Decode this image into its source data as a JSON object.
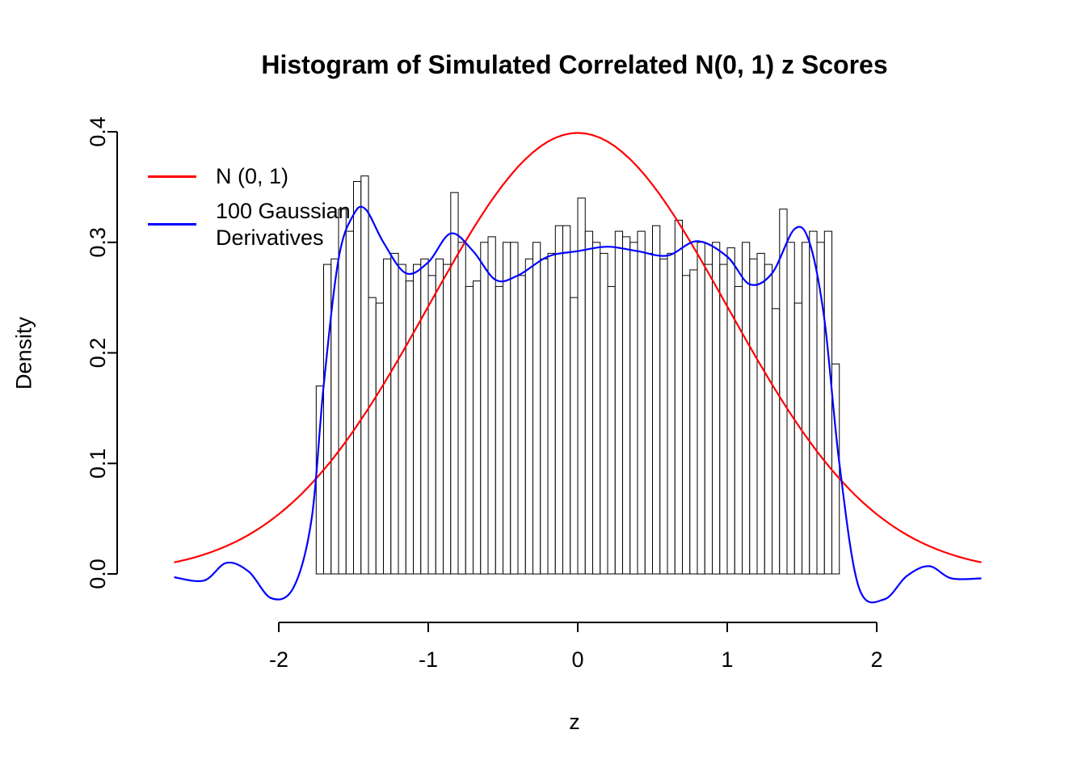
{
  "chart_data": {
    "type": "bar",
    "subtype": "histogram-with-density-overlays",
    "title": "Histogram of Simulated Correlated N(0, 1) z Scores",
    "xlabel": "z",
    "ylabel": "Density",
    "xlim": [
      -2.7,
      2.7
    ],
    "ylim": [
      -0.03,
      0.4
    ],
    "grid": false,
    "bar_fill": "#FFFFFF",
    "bar_stroke": "#000000",
    "x_ticks": [
      {
        "v": -2,
        "label": "-2"
      },
      {
        "v": -1,
        "label": "-1"
      },
      {
        "v": 0,
        "label": "0"
      },
      {
        "v": 1,
        "label": "1"
      },
      {
        "v": 2,
        "label": "2"
      }
    ],
    "y_ticks": [
      {
        "v": 0.0,
        "label": "0.0"
      },
      {
        "v": 0.1,
        "label": "0.1"
      },
      {
        "v": 0.2,
        "label": "0.2"
      },
      {
        "v": 0.3,
        "label": "0.3"
      },
      {
        "v": 0.4,
        "label": "0.4"
      }
    ],
    "bins": {
      "start": -1.75,
      "bin_width": 0.05,
      "heights": [
        0.17,
        0.28,
        0.285,
        0.33,
        0.31,
        0.355,
        0.36,
        0.25,
        0.245,
        0.285,
        0.29,
        0.28,
        0.265,
        0.28,
        0.285,
        0.27,
        0.285,
        0.28,
        0.345,
        0.3,
        0.26,
        0.265,
        0.3,
        0.305,
        0.26,
        0.3,
        0.3,
        0.27,
        0.285,
        0.3,
        0.285,
        0.29,
        0.315,
        0.315,
        0.25,
        0.34,
        0.31,
        0.3,
        0.29,
        0.26,
        0.31,
        0.305,
        0.3,
        0.31,
        0.29,
        0.315,
        0.285,
        0.29,
        0.32,
        0.27,
        0.275,
        0.3,
        0.28,
        0.3,
        0.28,
        0.295,
        0.26,
        0.3,
        0.285,
        0.29,
        0.28,
        0.24,
        0.33,
        0.3,
        0.245,
        0.3,
        0.31,
        0.3,
        0.31,
        0.19
      ]
    },
    "series": [
      {
        "name": "N (0, 1)",
        "color": "#FF0000",
        "type": "normal_density",
        "mean": 0,
        "sd": 1,
        "x_range": [
          -2.7,
          2.7
        ]
      },
      {
        "name": "100 Gaussian Derivatives",
        "color": "#0000FF",
        "type": "points",
        "points": [
          [
            -2.7,
            -0.003
          ],
          [
            -2.5,
            -0.006
          ],
          [
            -2.35,
            0.01
          ],
          [
            -2.2,
            0.002
          ],
          [
            -2.05,
            -0.022
          ],
          [
            -1.9,
            -0.012
          ],
          [
            -1.78,
            0.05
          ],
          [
            -1.7,
            0.17
          ],
          [
            -1.6,
            0.285
          ],
          [
            -1.5,
            0.325
          ],
          [
            -1.42,
            0.33
          ],
          [
            -1.3,
            0.3
          ],
          [
            -1.15,
            0.272
          ],
          [
            -1.0,
            0.282
          ],
          [
            -0.85,
            0.308
          ],
          [
            -0.7,
            0.292
          ],
          [
            -0.55,
            0.266
          ],
          [
            -0.4,
            0.27
          ],
          [
            -0.2,
            0.287
          ],
          [
            0.0,
            0.292
          ],
          [
            0.2,
            0.296
          ],
          [
            0.4,
            0.292
          ],
          [
            0.6,
            0.288
          ],
          [
            0.8,
            0.301
          ],
          [
            1.0,
            0.287
          ],
          [
            1.15,
            0.262
          ],
          [
            1.3,
            0.272
          ],
          [
            1.45,
            0.312
          ],
          [
            1.55,
            0.3
          ],
          [
            1.65,
            0.23
          ],
          [
            1.75,
            0.1
          ],
          [
            1.88,
            -0.012
          ],
          [
            2.05,
            -0.023
          ],
          [
            2.2,
            -0.002
          ],
          [
            2.35,
            0.007
          ],
          [
            2.5,
            -0.004
          ],
          [
            2.7,
            -0.004
          ]
        ]
      }
    ],
    "legend": {
      "position": "top-left",
      "entries": [
        {
          "label": "N (0, 1)",
          "color": "#FF0000"
        },
        {
          "label": "100 Gaussian\nDerivatives",
          "color": "#0000FF"
        }
      ]
    }
  }
}
